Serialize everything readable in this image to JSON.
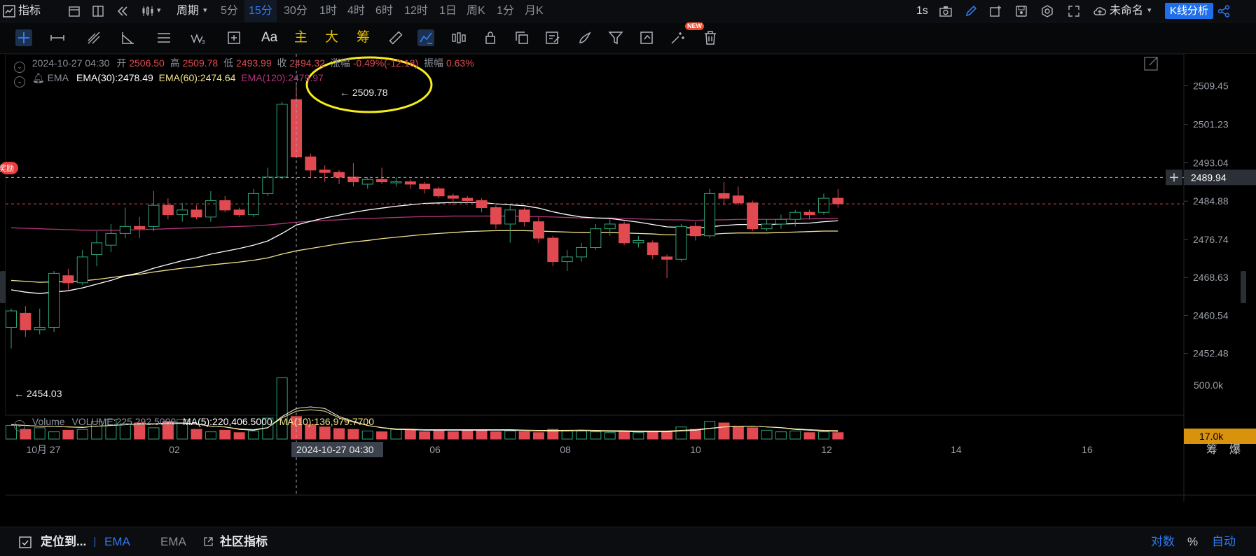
{
  "toolbar": {
    "indicators": "指标",
    "period_label": "周期",
    "periods": [
      "5分",
      "15分",
      "30分",
      "1时",
      "4时",
      "6时",
      "12时",
      "1日",
      "周K",
      "1分",
      "月K"
    ],
    "selected_period": "15分",
    "refresh": "1s",
    "layout_name": "未命名",
    "kline_analysis": "K线分析"
  },
  "drawing": {
    "text_tool": "Aa",
    "main": "主",
    "large": "大",
    "chips": "筹",
    "new_badge": "NEW"
  },
  "ohlc": {
    "date": "2024-10-27 04:30",
    "open_label": "开",
    "open": "2506.50",
    "high_label": "高",
    "high": "2509.78",
    "low_label": "低",
    "low": "2493.99",
    "close_label": "收",
    "close": "2494.32",
    "change_label": "涨幅",
    "change": "-0.49%(-12.18)",
    "amplitude_label": "振幅",
    "amplitude": "0.63%"
  },
  "ema": {
    "name": "EMA",
    "ema30": "EMA(30):2478.49",
    "ema60": "EMA(60):2474.64",
    "ema120": "EMA(120):2479.97"
  },
  "volume": {
    "name": "Volume",
    "value": "VOLUME:225,292.5000",
    "ma5": "MA(5):220,406.5000",
    "ma10": "MA(10):136,979.7700",
    "axis_label": "500.0k",
    "current_tag": "17.0k"
  },
  "annotations": {
    "high_marker": "← 2509.78",
    "low_marker": "← 2454.03",
    "reward_tag": "奖励"
  },
  "price_axis": [
    "2509.45",
    "2501.23",
    "2493.04",
    "2484.88",
    "2476.74",
    "2468.63",
    "2460.54",
    "2452.48"
  ],
  "crosshair_price": "2489.94",
  "time_axis": {
    "labels": [
      "10月 27",
      "02",
      "06",
      "08",
      "10",
      "12",
      "14",
      "16"
    ],
    "crosshair_time": "2024-10-27 04:30",
    "right_labels": [
      "筹",
      "爆"
    ]
  },
  "bottom": {
    "locate": "定位到...",
    "ema_active": "EMA",
    "ema": "EMA",
    "community": "社区指标",
    "log": "对数",
    "percent": "%",
    "auto": "自动"
  },
  "colors": {
    "up": "#2fa37a",
    "down": "#e04a50",
    "accent": "#2f7bf0",
    "ema30": "#ffffff",
    "ema60": "#f3e38a",
    "ema120": "#b0357a",
    "highlight_circle": "#f7ec1c"
  },
  "chart_data": {
    "type": "candlestick",
    "symbol_price_range": [
      2450,
      2512
    ],
    "candles": [
      {
        "o": 2458.0,
        "h": 2462.0,
        "l": 2453.5,
        "c": 2461.5
      },
      {
        "o": 2461.0,
        "h": 2462.5,
        "l": 2456.0,
        "c": 2457.5
      },
      {
        "o": 2457.5,
        "h": 2462.0,
        "l": 2456.5,
        "c": 2458.0
      },
      {
        "o": 2458.0,
        "h": 2470.0,
        "l": 2457.0,
        "c": 2469.5
      },
      {
        "o": 2469.0,
        "h": 2470.5,
        "l": 2466.0,
        "c": 2467.5
      },
      {
        "o": 2467.5,
        "h": 2474.5,
        "l": 2467.0,
        "c": 2473.0
      },
      {
        "o": 2473.5,
        "h": 2478.5,
        "l": 2471.0,
        "c": 2476.0
      },
      {
        "o": 2475.5,
        "h": 2480.0,
        "l": 2474.0,
        "c": 2478.0
      },
      {
        "o": 2478.0,
        "h": 2483.5,
        "l": 2477.0,
        "c": 2479.5
      },
      {
        "o": 2479.5,
        "h": 2481.5,
        "l": 2477.0,
        "c": 2479.0
      },
      {
        "o": 2479.5,
        "h": 2487.0,
        "l": 2478.5,
        "c": 2484.0
      },
      {
        "o": 2484.0,
        "h": 2485.5,
        "l": 2481.0,
        "c": 2482.0
      },
      {
        "o": 2482.0,
        "h": 2484.5,
        "l": 2480.5,
        "c": 2483.0
      },
      {
        "o": 2483.0,
        "h": 2484.0,
        "l": 2481.0,
        "c": 2481.5
      },
      {
        "o": 2481.5,
        "h": 2487.0,
        "l": 2480.5,
        "c": 2485.0
      },
      {
        "o": 2485.0,
        "h": 2486.0,
        "l": 2482.5,
        "c": 2483.0
      },
      {
        "o": 2483.0,
        "h": 2483.5,
        "l": 2481.5,
        "c": 2482.0
      },
      {
        "o": 2482.0,
        "h": 2487.5,
        "l": 2481.5,
        "c": 2486.5
      },
      {
        "o": 2486.5,
        "h": 2492.0,
        "l": 2486.0,
        "c": 2490.0
      },
      {
        "o": 2490.0,
        "h": 2506.0,
        "l": 2489.5,
        "c": 2505.5
      },
      {
        "o": 2506.5,
        "h": 2509.78,
        "l": 2493.99,
        "c": 2494.32
      },
      {
        "o": 2494.3,
        "h": 2495.0,
        "l": 2490.0,
        "c": 2491.5
      },
      {
        "o": 2491.5,
        "h": 2492.5,
        "l": 2489.0,
        "c": 2491.0
      },
      {
        "o": 2491.0,
        "h": 2491.5,
        "l": 2488.5,
        "c": 2490.0
      },
      {
        "o": 2490.0,
        "h": 2493.0,
        "l": 2488.0,
        "c": 2489.0
      },
      {
        "o": 2488.5,
        "h": 2490.0,
        "l": 2487.5,
        "c": 2489.5
      },
      {
        "o": 2489.5,
        "h": 2492.0,
        "l": 2488.5,
        "c": 2489.0
      },
      {
        "o": 2489.0,
        "h": 2490.0,
        "l": 2488.0,
        "c": 2489.0
      },
      {
        "o": 2489.0,
        "h": 2489.5,
        "l": 2487.5,
        "c": 2488.5
      },
      {
        "o": 2488.5,
        "h": 2489.0,
        "l": 2486.5,
        "c": 2487.5
      },
      {
        "o": 2487.5,
        "h": 2488.0,
        "l": 2485.5,
        "c": 2486.0
      },
      {
        "o": 2486.0,
        "h": 2486.5,
        "l": 2484.0,
        "c": 2485.5
      },
      {
        "o": 2485.5,
        "h": 2486.0,
        "l": 2484.5,
        "c": 2485.0
      },
      {
        "o": 2485.0,
        "h": 2485.5,
        "l": 2482.5,
        "c": 2483.5
      },
      {
        "o": 2483.5,
        "h": 2484.0,
        "l": 2479.0,
        "c": 2480.0
      },
      {
        "o": 2480.0,
        "h": 2484.0,
        "l": 2476.0,
        "c": 2483.0
      },
      {
        "o": 2483.0,
        "h": 2483.5,
        "l": 2479.5,
        "c": 2480.5
      },
      {
        "o": 2480.5,
        "h": 2481.5,
        "l": 2476.0,
        "c": 2477.0
      },
      {
        "o": 2477.0,
        "h": 2477.5,
        "l": 2471.0,
        "c": 2472.0
      },
      {
        "o": 2472.0,
        "h": 2474.5,
        "l": 2470.0,
        "c": 2473.0
      },
      {
        "o": 2473.0,
        "h": 2476.0,
        "l": 2472.0,
        "c": 2475.0
      },
      {
        "o": 2475.0,
        "h": 2480.0,
        "l": 2474.5,
        "c": 2479.0
      },
      {
        "o": 2479.0,
        "h": 2481.0,
        "l": 2477.5,
        "c": 2480.0
      },
      {
        "o": 2480.0,
        "h": 2480.5,
        "l": 2475.5,
        "c": 2476.0
      },
      {
        "o": 2476.0,
        "h": 2477.5,
        "l": 2475.0,
        "c": 2476.5
      },
      {
        "o": 2476.0,
        "h": 2476.5,
        "l": 2472.5,
        "c": 2473.5
      },
      {
        "o": 2473.0,
        "h": 2473.5,
        "l": 2468.5,
        "c": 2472.5
      },
      {
        "o": 2472.5,
        "h": 2480.0,
        "l": 2472.0,
        "c": 2479.5
      },
      {
        "o": 2479.5,
        "h": 2480.5,
        "l": 2476.5,
        "c": 2477.5
      },
      {
        "o": 2477.5,
        "h": 2487.5,
        "l": 2477.0,
        "c": 2486.5
      },
      {
        "o": 2486.5,
        "h": 2489.0,
        "l": 2484.0,
        "c": 2485.5
      },
      {
        "o": 2486.0,
        "h": 2488.0,
        "l": 2484.0,
        "c": 2484.5
      },
      {
        "o": 2484.5,
        "h": 2485.0,
        "l": 2478.5,
        "c": 2479.0
      },
      {
        "o": 2479.0,
        "h": 2481.0,
        "l": 2478.5,
        "c": 2480.0
      },
      {
        "o": 2480.0,
        "h": 2482.0,
        "l": 2479.0,
        "c": 2481.0
      },
      {
        "o": 2481.0,
        "h": 2483.0,
        "l": 2479.5,
        "c": 2482.5
      },
      {
        "o": 2482.5,
        "h": 2483.0,
        "l": 2481.0,
        "c": 2482.0
      },
      {
        "o": 2482.5,
        "h": 2486.5,
        "l": 2482.0,
        "c": 2485.5
      },
      {
        "o": 2485.5,
        "h": 2487.5,
        "l": 2483.5,
        "c": 2484.3
      }
    ],
    "ema30": [
      2466.0,
      2465.5,
      2465.2,
      2465.5,
      2465.8,
      2466.4,
      2467.2,
      2468.0,
      2469.0,
      2469.6,
      2470.6,
      2471.4,
      2472.2,
      2472.8,
      2473.6,
      2474.2,
      2474.8,
      2475.5,
      2476.4,
      2478.0,
      2479.8,
      2480.6,
      2481.3,
      2481.9,
      2482.5,
      2483.0,
      2483.4,
      2483.8,
      2484.1,
      2484.4,
      2484.5,
      2484.6,
      2484.6,
      2484.6,
      2484.3,
      2484.1,
      2483.9,
      2483.4,
      2482.6,
      2482.0,
      2481.5,
      2481.3,
      2481.2,
      2480.8,
      2480.4,
      2479.9,
      2479.4,
      2479.3,
      2479.1,
      2479.4,
      2479.7,
      2479.9,
      2479.9,
      2479.9,
      2480.0,
      2480.1,
      2480.2,
      2480.5,
      2480.7
    ],
    "ema60": [
      2468.0,
      2467.8,
      2467.6,
      2467.7,
      2467.7,
      2467.9,
      2468.2,
      2468.6,
      2469.0,
      2469.3,
      2469.8,
      2470.2,
      2470.6,
      2470.9,
      2471.3,
      2471.6,
      2471.9,
      2472.3,
      2472.8,
      2473.6,
      2474.3,
      2474.8,
      2475.3,
      2475.8,
      2476.2,
      2476.5,
      2476.9,
      2477.2,
      2477.5,
      2477.8,
      2478.0,
      2478.2,
      2478.4,
      2478.5,
      2478.6,
      2478.6,
      2478.6,
      2478.5,
      2478.4,
      2478.3,
      2478.2,
      2478.2,
      2478.2,
      2478.1,
      2478.0,
      2477.9,
      2477.7,
      2477.7,
      2477.7,
      2477.8,
      2478.0,
      2478.1,
      2478.1,
      2478.1,
      2478.2,
      2478.3,
      2478.4,
      2478.5,
      2478.5
    ],
    "ema120": [
      2479.2,
      2479.1,
      2479.0,
      2478.9,
      2478.8,
      2478.7,
      2478.7,
      2478.7,
      2478.7,
      2478.8,
      2478.9,
      2479.0,
      2479.1,
      2479.2,
      2479.3,
      2479.4,
      2479.5,
      2479.6,
      2479.8,
      2480.1,
      2480.4,
      2480.6,
      2480.8,
      2480.9,
      2481.1,
      2481.2,
      2481.3,
      2481.4,
      2481.5,
      2481.6,
      2481.6,
      2481.7,
      2481.7,
      2481.7,
      2481.7,
      2481.7,
      2481.6,
      2481.6,
      2481.5,
      2481.4,
      2481.3,
      2481.3,
      2481.3,
      2481.2,
      2481.1,
      2481.0,
      2480.9,
      2480.9,
      2480.8,
      2480.9,
      2480.9,
      2481.0,
      2481.0,
      2481.0,
      2481.0,
      2481.1,
      2481.1,
      2481.2,
      2481.2
    ],
    "volumes": [
      85,
      60,
      70,
      45,
      55,
      60,
      110,
      120,
      95,
      100,
      70,
      110,
      120,
      60,
      45,
      55,
      40,
      50,
      130,
      380,
      140,
      90,
      75,
      65,
      60,
      50,
      45,
      60,
      55,
      45,
      50,
      45,
      55,
      55,
      45,
      50,
      45,
      40,
      60,
      55,
      50,
      45,
      40,
      45,
      40,
      45,
      50,
      75,
      60,
      110,
      100,
      80,
      70,
      55,
      45,
      50,
      40,
      45,
      40
    ],
    "vol_ma": [
      90,
      85,
      80,
      78,
      75,
      72,
      80,
      85,
      90,
      95,
      95,
      100,
      100,
      95,
      80,
      75,
      60,
      55,
      70,
      140,
      190,
      200,
      190,
      140,
      110,
      85,
      70,
      60,
      58,
      55,
      55,
      55,
      55,
      55,
      55,
      55,
      52,
      50,
      50,
      50,
      52,
      50,
      48,
      47,
      45,
      45,
      45,
      50,
      55,
      65,
      75,
      78,
      80,
      75,
      70,
      60,
      55,
      50,
      48
    ]
  }
}
